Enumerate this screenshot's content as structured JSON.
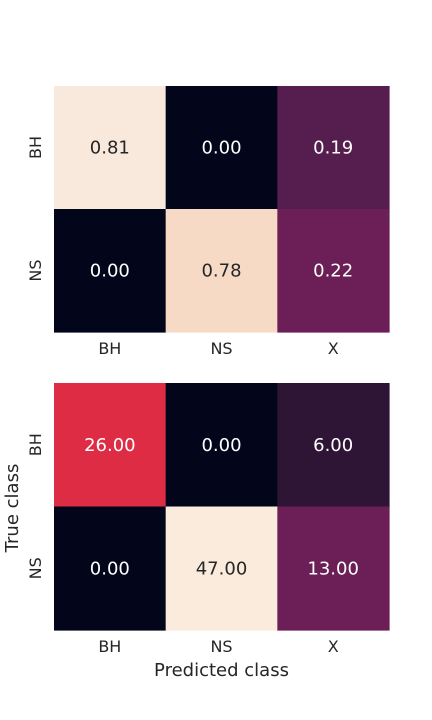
{
  "chart_data": [
    {
      "type": "heatmap",
      "rows": [
        "BH",
        "NS"
      ],
      "columns": [
        "BH",
        "NS",
        "X"
      ],
      "values": [
        [
          0.81,
          0.0,
          0.19
        ],
        [
          0.0,
          0.78,
          0.22
        ]
      ],
      "labels": [
        [
          "0.81",
          "0.00",
          "0.19"
        ],
        [
          "0.00",
          "0.78",
          "0.22"
        ]
      ],
      "colors": [
        [
          "#f9e8dc",
          "#03051a",
          "#561e4f"
        ],
        [
          "#03051a",
          "#f7dac6",
          "#6b1f56"
        ]
      ],
      "text_colors": [
        [
          "#262626",
          "#ffffff",
          "#ffffff"
        ],
        [
          "#ffffff",
          "#262626",
          "#ffffff"
        ]
      ],
      "xlabel": "",
      "ylabel": ""
    },
    {
      "type": "heatmap",
      "rows": [
        "BH",
        "NS"
      ],
      "columns": [
        "BH",
        "NS",
        "X"
      ],
      "values": [
        [
          26.0,
          0.0,
          6.0
        ],
        [
          0.0,
          47.0,
          13.0
        ]
      ],
      "labels": [
        [
          "26.00",
          "0.00",
          "6.00"
        ],
        [
          "0.00",
          "47.00",
          "13.00"
        ]
      ],
      "colors": [
        [
          "#de2c44",
          "#03051a",
          "#2e1535"
        ],
        [
          "#03051a",
          "#faebdd",
          "#6b1f56"
        ]
      ],
      "text_colors": [
        [
          "#ffffff",
          "#ffffff",
          "#ffffff"
        ],
        [
          "#ffffff",
          "#262626",
          "#ffffff"
        ]
      ],
      "xlabel": "Predicted class",
      "ylabel": "True class"
    }
  ]
}
